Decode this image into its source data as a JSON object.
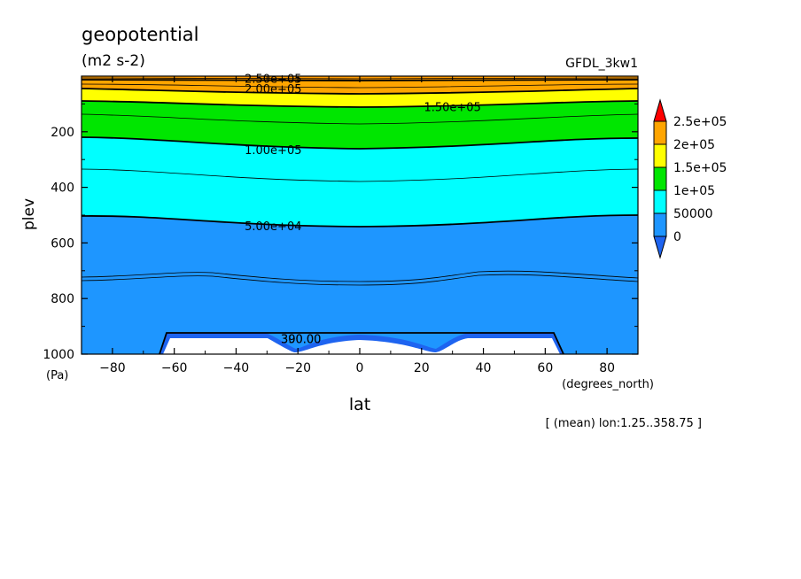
{
  "chart_data": {
    "type": "contour",
    "title": "geopotential",
    "units": "(m2 s-2)",
    "model": "GFDL_3kw1",
    "xlabel": "lat",
    "xunits": "(degrees_north)",
    "ylabel": "plev",
    "yunits": "(Pa)",
    "xlim": [
      -90,
      90
    ],
    "ylim": [
      0,
      1000
    ],
    "y_inverted": true,
    "xticks": [
      -80,
      -60,
      -40,
      -20,
      0,
      20,
      40,
      60,
      80
    ],
    "xtick_labels": [
      "−80",
      "−60",
      "−40",
      "−20",
      "0",
      "20",
      "40",
      "60",
      "80"
    ],
    "yticks": [
      200,
      400,
      600,
      800,
      1000
    ],
    "ytick_labels": [
      "200",
      "400",
      "600",
      "800",
      "1000"
    ],
    "footnote": "[ (mean) lon:1.25..358.75 ]",
    "colorbar": {
      "labels": [
        "2.5e+05",
        "2e+05",
        "1.5e+05",
        "1e+05",
        "50000",
        "0"
      ],
      "levels": [
        0,
        50000,
        100000,
        150000,
        200000,
        250000
      ],
      "colors": {
        "below": "#1e64f0",
        "bands": [
          "#1e96ff",
          "#00ffff",
          "#00e600",
          "#ffff00",
          "#ffa500"
        ],
        "above": "#ff0000"
      }
    },
    "contours": [
      {
        "level": 50000,
        "plev": [
          520,
          520,
          535,
          540,
          540,
          520,
          510,
          510
        ]
      },
      {
        "level": 100000,
        "plev": [
          232,
          232,
          255,
          265,
          265,
          240,
          225,
          225
        ]
      },
      {
        "level": 150000,
        "plev": [
          100,
          100,
          112,
          118,
          118,
          105,
          96,
          96
        ]
      },
      {
        "level": 200000,
        "plev": [
          40,
          40,
          48,
          52,
          52,
          45,
          38,
          38
        ]
      },
      {
        "level": 250000,
        "plev": [
          10,
          10,
          14,
          16,
          16,
          12,
          8,
          8
        ]
      }
    ],
    "contour_lats": [
      -90,
      -60,
      -35,
      -15,
      15,
      35,
      60,
      90
    ],
    "contour_labels": [
      {
        "text": "2.50e+05",
        "lat": -28,
        "plev": 8
      },
      {
        "text": "2.00e+05",
        "lat": -28,
        "plev": 45
      },
      {
        "text": "1.50e+05",
        "lat": 30,
        "plev": 110
      },
      {
        "text": "1.00e+05",
        "lat": -28,
        "plev": 265
      },
      {
        "text": "5.00e+04",
        "lat": -28,
        "plev": 538
      },
      {
        "text": "390.00",
        "lat": -19,
        "plev": 945
      },
      {
        "text": "300.00",
        "lat": -19,
        "plev": 945
      }
    ]
  }
}
